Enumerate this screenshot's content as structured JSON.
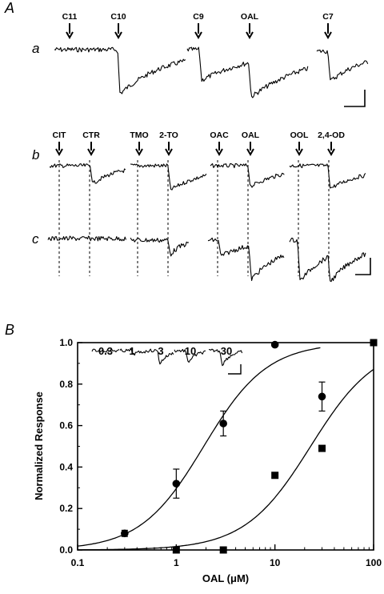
{
  "panels": {
    "A": "A",
    "B": "B"
  },
  "rows": {
    "a": "a",
    "b": "b",
    "c": "c"
  },
  "row_a_stimuli": [
    "C11",
    "C10",
    "C9",
    "OAL",
    "C7"
  ],
  "row_b_stimuli": [
    "CIT",
    "CTR",
    "TMO",
    "2-TO",
    "OAC",
    "OAL",
    "OOL",
    "2,4-OD"
  ],
  "inset_concentrations": [
    "0.3",
    "1",
    "3",
    "10",
    "30"
  ],
  "chart_data": {
    "type": "scatter",
    "xlabel": "OAL (μM)",
    "ylabel": "Normalized Response",
    "xscale": "log",
    "xlim": [
      0.1,
      100
    ],
    "ylim": [
      0,
      1.0
    ],
    "xticks": [
      "0.1",
      "1",
      "10",
      "100"
    ],
    "yticks": [
      "0.0",
      "0.2",
      "0.4",
      "0.6",
      "0.8",
      "1.0"
    ],
    "grid": false,
    "series": [
      {
        "marker": "circle",
        "points": [
          {
            "x": 0.3,
            "y": 0.08,
            "err": 0.015
          },
          {
            "x": 1,
            "y": 0.32,
            "err": 0.07
          },
          {
            "x": 3,
            "y": 0.61,
            "err": 0.06
          },
          {
            "x": 10,
            "y": 0.99,
            "err": 0
          },
          {
            "x": 30,
            "y": 0.74,
            "err": 0.07
          }
        ],
        "fit": {
          "EC50": 1.9,
          "hill": 1.35,
          "xmax": 30
        }
      },
      {
        "marker": "square",
        "points": [
          {
            "x": 1,
            "y": 0.0
          },
          {
            "x": 3,
            "y": 0.0
          },
          {
            "x": 10,
            "y": 0.36
          },
          {
            "x": 30,
            "y": 0.49
          },
          {
            "x": 100,
            "y": 1.0
          }
        ],
        "fit": {
          "EC50": 23,
          "hill": 1.3,
          "xmax": 100
        }
      }
    ]
  }
}
